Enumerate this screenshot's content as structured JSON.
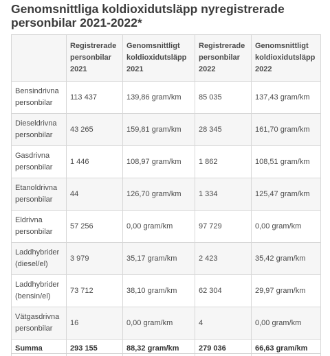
{
  "title": "Genomsnittliga koldioxidutsläpp nyregistrerade personbilar 2021-2022*",
  "table": {
    "headers": [
      "",
      "Registrerade personbilar 2021",
      "Genomsnittligt koldioxidutsläpp 2021",
      "Registrerade personbilar 2022",
      "Genomsnittligt koldioxidutsläpp 2022"
    ],
    "rows": [
      [
        "Bensindrivna personbilar",
        "113 437",
        "139,86 gram/km",
        "85 035",
        "137,43 gram/km"
      ],
      [
        "Dieseldrivna personbilar",
        "43 265",
        "159,81 gram/km",
        "28 345",
        "161,70 gram/km"
      ],
      [
        "Gasdrivna personbilar",
        "1 446",
        "108,97 gram/km",
        "1 862",
        "108,51 gram/km"
      ],
      [
        "Etanoldrivna personbilar",
        "44",
        "126,70 gram/km",
        "1 334",
        "125,47 gram/km"
      ],
      [
        "Eldrivna personbilar",
        "57 256",
        "0,00 gram/km",
        "97 729",
        "0,00 gram/km"
      ],
      [
        "Laddhybrider (diesel/el)",
        "3 979",
        "35,17 gram/km",
        "2 423",
        "35,42 gram/km"
      ],
      [
        "Laddhybrider (bensin/el)",
        "73 712",
        "38,10 gram/km",
        "62 304",
        "29,97 gram/km"
      ],
      [
        "Vätgasdrivna personbilar",
        "16",
        "0,00 gram/km",
        "4",
        "0,00 gram/km"
      ]
    ],
    "summary": [
      "Summa",
      "293 155",
      "88,32 gram/km",
      "279 036",
      "66,63 gram/km"
    ]
  }
}
